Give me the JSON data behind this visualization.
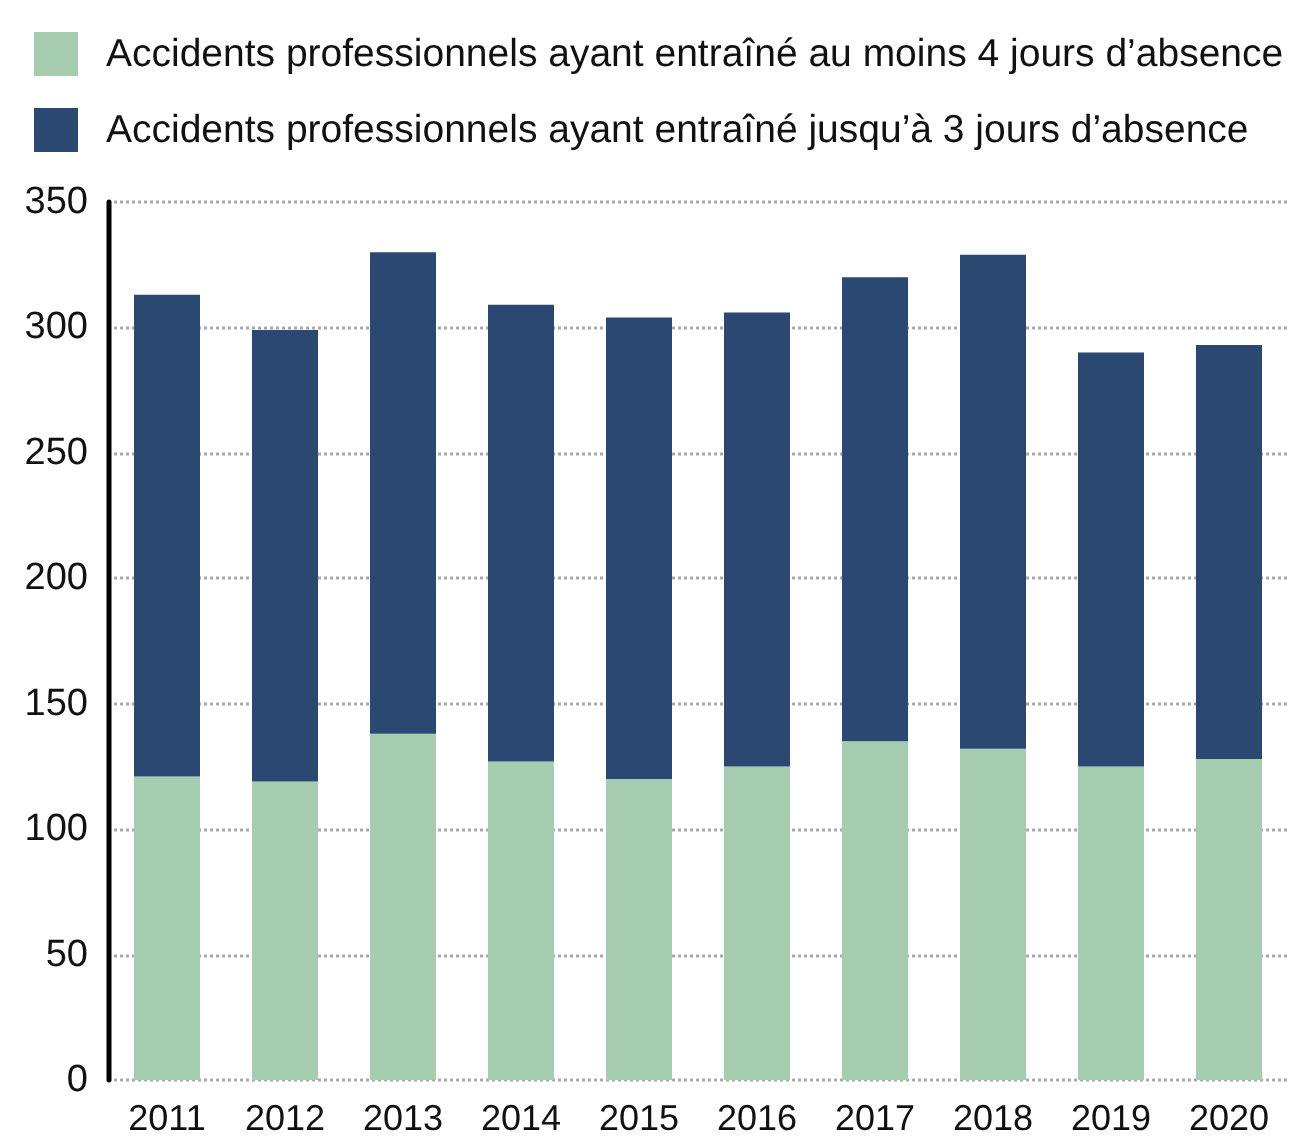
{
  "chart_data": {
    "type": "bar",
    "stacked": true,
    "categories": [
      "2011",
      "2012",
      "2013",
      "2014",
      "2015",
      "2016",
      "2017",
      "2018",
      "2019",
      "2020"
    ],
    "series": [
      {
        "name": "Accidents professionnels ayant entraîné au moins 4 jours d’absence",
        "color": "#a7cdb0",
        "values": [
          121,
          119,
          138,
          127,
          120,
          125,
          135,
          132,
          125,
          128
        ]
      },
      {
        "name": "Accidents professionnels ayant entraîné jusqu’à 3 jours d’absence",
        "color": "#2a4872",
        "values": [
          192,
          180,
          192,
          182,
          184,
          181,
          185,
          197,
          165,
          165
        ]
      }
    ],
    "ylim": [
      0,
      350
    ],
    "yticks": [
      0,
      50,
      100,
      150,
      200,
      250,
      300,
      350
    ],
    "grid": "y",
    "legend": "top left"
  }
}
